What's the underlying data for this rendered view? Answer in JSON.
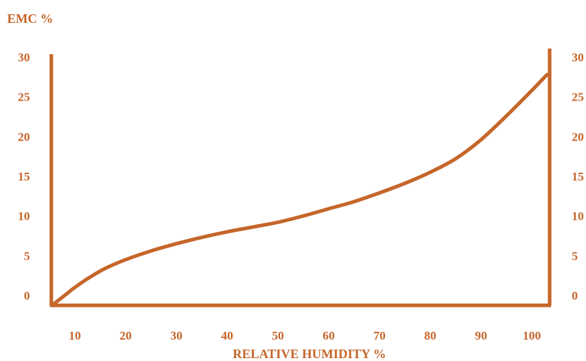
{
  "chart_data": {
    "type": "line",
    "title": "",
    "ylabel": "EMC %",
    "xlabel": "RELATIVE HUMIDITY %",
    "x_ticks": [
      10,
      20,
      30,
      40,
      50,
      60,
      70,
      80,
      90,
      100
    ],
    "y_ticks": [
      0,
      5,
      10,
      15,
      20,
      25,
      30
    ],
    "xlim": [
      5,
      104
    ],
    "ylim": [
      -1,
      31
    ],
    "grid": false,
    "legend": "none",
    "color": "#C5662A",
    "series": [
      {
        "x": [
          6,
          8,
          10,
          13,
          16,
          20,
          25,
          30,
          35,
          40,
          45,
          50,
          55,
          60,
          65,
          70,
          75,
          80,
          85,
          90,
          95,
          100,
          103
        ],
        "y": [
          -1,
          0,
          1,
          2.3,
          3.4,
          4.5,
          5.6,
          6.5,
          7.3,
          8,
          8.6,
          9.2,
          10,
          10.9,
          11.8,
          12.9,
          14.1,
          15.5,
          17.2,
          19.6,
          22.6,
          25.8,
          27.8
        ]
      }
    ]
  }
}
